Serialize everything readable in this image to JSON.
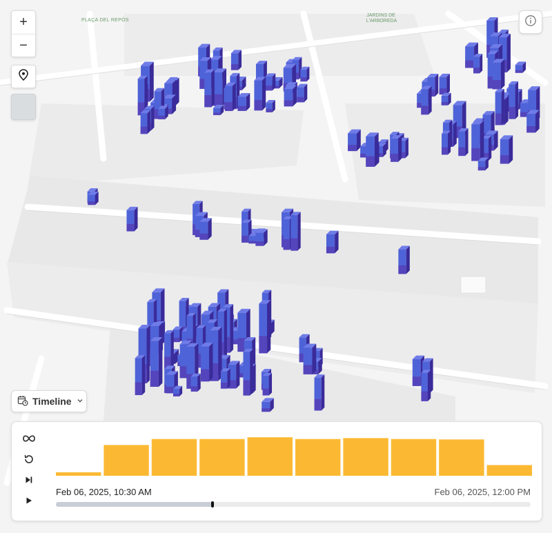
{
  "map": {
    "labels": [
      {
        "id": "placa",
        "text": "PLAÇA DEL REPÒS"
      },
      {
        "id": "jardins",
        "text": "JARDINS DE L'ARBOREDA"
      }
    ],
    "column_colors": {
      "top": "#6f7ce8",
      "side_light": "#4f63d8",
      "side_dark": "#3a2b9a",
      "base": "#5a2ea6"
    }
  },
  "controls": {
    "zoom_in": "+",
    "zoom_out": "−",
    "locate_icon": "map-pin-icon",
    "info_icon": "info-icon",
    "timeline_label": "Timeline"
  },
  "timeline": {
    "start_label": "Feb 06, 2025, 10:30 AM",
    "end_label": "Feb 06, 2025, 12:00 PM",
    "progress": 0.33,
    "histogram": [
      0.08,
      0.72,
      0.86,
      0.86,
      0.9,
      0.86,
      0.88,
      0.86,
      0.85,
      0.25
    ],
    "bar_color": "#fbb933"
  }
}
